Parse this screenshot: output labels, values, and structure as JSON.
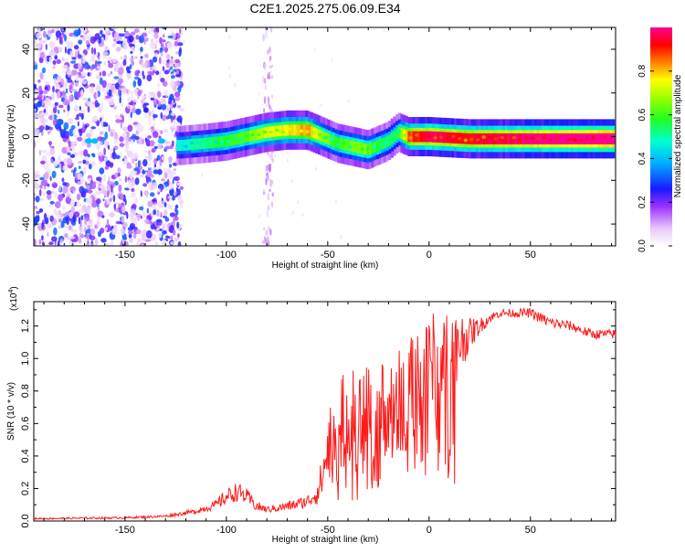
{
  "title": "C2E1.2025.275.06.09.E34",
  "chart_data": [
    {
      "type": "heatmap",
      "xlabel": "Height of straight line (km)",
      "ylabel": "Frequency (Hz)",
      "xlim": [
        -195,
        92
      ],
      "ylim": [
        -50,
        50
      ],
      "xticks": [
        "-150",
        "-100",
        "-50",
        "0",
        "50"
      ],
      "xtick_values": [
        -150,
        -100,
        -50,
        0,
        50
      ],
      "yticks": [
        "40",
        "20",
        "0",
        "-20",
        "-40"
      ],
      "ytick_values": [
        40,
        20,
        0,
        -20,
        -40
      ],
      "colorbar": {
        "label": "Normalized spectral amplitude",
        "range": [
          0.0,
          1.0
        ],
        "ticks": [
          "0.0",
          "0.2",
          "0.4",
          "0.6",
          "0.8"
        ],
        "tick_values": [
          0.0,
          0.2,
          0.4,
          0.6,
          0.8
        ]
      },
      "ridge": {
        "x": [
          -122,
          -110,
          -100,
          -90,
          -80,
          -70,
          -60,
          -55,
          -50,
          -45,
          -40,
          -35,
          -30,
          -25,
          -20,
          -15,
          -10,
          0,
          20,
          40,
          60,
          90
        ],
        "freq": [
          -4,
          -3,
          -2,
          0,
          2,
          3,
          3,
          1,
          -1,
          -3,
          -4,
          -5,
          -6,
          -4,
          -2,
          2,
          0,
          0,
          -1,
          -1,
          -1,
          -1
        ],
        "amplitude": [
          0.35,
          0.4,
          0.45,
          0.5,
          0.6,
          0.65,
          0.7,
          0.6,
          0.5,
          0.45,
          0.5,
          0.55,
          0.5,
          0.45,
          0.4,
          0.45,
          0.75,
          0.85,
          0.8,
          0.85,
          0.9,
          0.95
        ]
      },
      "noise_region_x": [
        -195,
        -122
      ]
    },
    {
      "type": "line",
      "xlabel": "Height of straight line (km)",
      "ylabel": "SNR (10 * v/v)",
      "y_multiplier_label": "(x10",
      "y_multiplier_exp": "4",
      "y_multiplier_close": ")",
      "xlim": [
        -195,
        92
      ],
      "ylim": [
        0,
        13500
      ],
      "xticks": [
        "-150",
        "-100",
        "-50",
        "0",
        "50"
      ],
      "xtick_values": [
        -150,
        -100,
        -50,
        0,
        50
      ],
      "yticks": [
        "0.0",
        "0.2",
        "0.4",
        "0.6",
        "0.8",
        "1.0",
        "1.2"
      ],
      "ytick_values": [
        0,
        2000,
        4000,
        6000,
        8000,
        10000,
        12000
      ],
      "series": [
        {
          "color": "#ff1a1a",
          "envelope_x": [
            -195,
            -150,
            -130,
            -115,
            -105,
            -100,
            -95,
            -90,
            -85,
            -80,
            -70,
            -60,
            -55,
            -52,
            -50,
            -45,
            -40,
            -35,
            -30,
            -25,
            -20,
            -15,
            -10,
            -5,
            0,
            5,
            10,
            15,
            20,
            25,
            30,
            35,
            40,
            50,
            60,
            70,
            80,
            90
          ],
          "envelope_y": [
            150,
            200,
            300,
            600,
            1000,
            1500,
            1800,
            1500,
            900,
            700,
            900,
            1200,
            1800,
            3000,
            4500,
            5500,
            6500,
            6000,
            6500,
            7000,
            7000,
            7500,
            8500,
            9000,
            9500,
            10000,
            10500,
            11000,
            11500,
            12000,
            12500,
            12800,
            12800,
            12800,
            12200,
            12000,
            11500,
            11500
          ],
          "jitter": [
            50,
            60,
            80,
            150,
            300,
            500,
            600,
            500,
            350,
            200,
            300,
            400,
            800,
            1500,
            2500,
            3000,
            3000,
            3200,
            3000,
            2800,
            2800,
            3000,
            2800,
            2500,
            3000,
            3500,
            3000,
            2000,
            1000,
            500,
            300,
            250,
            250,
            300,
            350,
            300,
            300,
            300
          ]
        }
      ]
    }
  ]
}
